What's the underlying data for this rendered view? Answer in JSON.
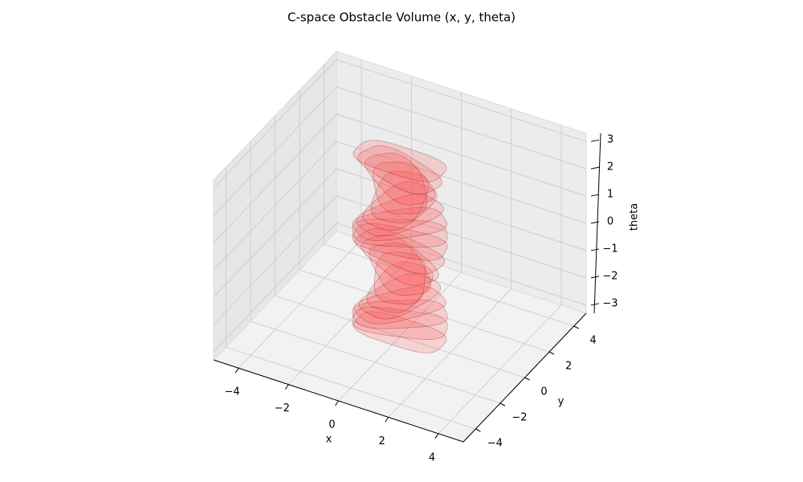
{
  "chart_data": {
    "type": "volume3d",
    "title": "C-space Obstacle Volume (x, y, theta)",
    "xlabel": "x",
    "ylabel": "y",
    "zlabel": "theta",
    "xlim": [
      -5,
      5
    ],
    "ylim": [
      -5,
      5
    ],
    "zlim": [
      -3.3,
      3.3
    ],
    "xticks": [
      {
        "value": -4,
        "label": "−4"
      },
      {
        "value": -2,
        "label": "−2"
      },
      0,
      2,
      4
    ],
    "yticks": [
      {
        "value": -4,
        "label": "−4"
      },
      {
        "value": -2,
        "label": "−2"
      },
      0,
      2,
      4
    ],
    "zticks": [
      {
        "value": -3,
        "label": "−3"
      },
      {
        "value": -2,
        "label": "−2"
      },
      {
        "value": -1,
        "label": "−1"
      },
      0,
      1,
      2,
      3
    ],
    "color": "#ff4040",
    "grid": true,
    "slices": [
      -3.14,
      -2.81,
      -2.48,
      -2.15,
      -1.82,
      -1.49,
      -1.16,
      -0.83,
      -0.5,
      -0.17,
      0.17,
      0.5,
      0.83,
      1.16,
      1.49,
      1.82,
      2.15,
      2.48,
      2.81,
      3.14
    ]
  }
}
